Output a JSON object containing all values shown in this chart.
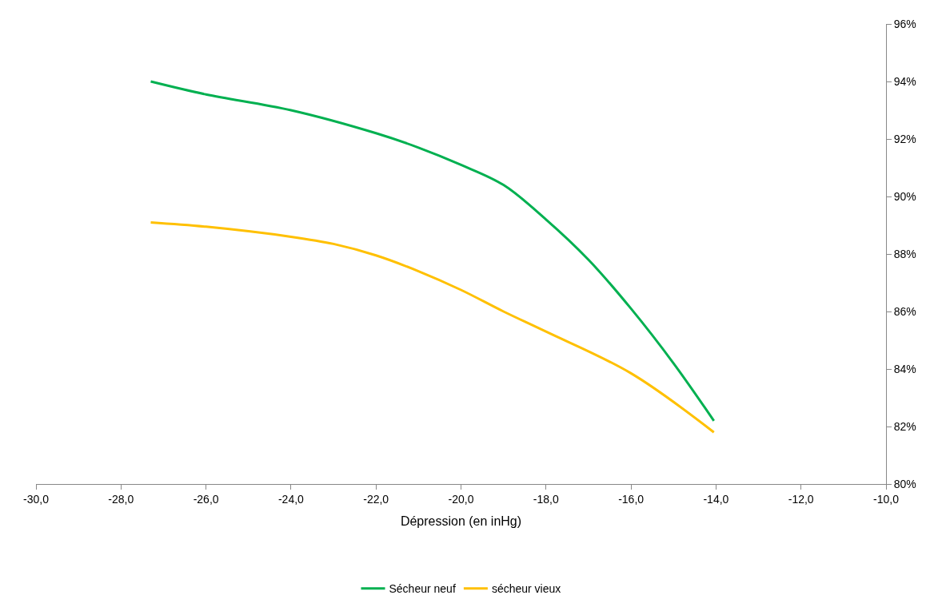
{
  "chart_data": {
    "type": "line",
    "xlabel": "Dépression (en inHg)",
    "xlim": [
      -30,
      -10
    ],
    "xticks": [
      {
        "value": -30,
        "label": "-30,0"
      },
      {
        "value": -28,
        "label": "-28,0"
      },
      {
        "value": -26,
        "label": "-26,0"
      },
      {
        "value": -24,
        "label": "-24,0"
      },
      {
        "value": -22,
        "label": "-22,0"
      },
      {
        "value": -20,
        "label": "-20,0"
      },
      {
        "value": -18,
        "label": "-18,0"
      },
      {
        "value": -16,
        "label": "-16,0"
      },
      {
        "value": -14,
        "label": "-14,0"
      },
      {
        "value": -12,
        "label": "-12,0"
      },
      {
        "value": -10,
        "label": "-10,0"
      }
    ],
    "ylim": [
      80,
      96
    ],
    "yticks": [
      {
        "value": 80,
        "label": "80%"
      },
      {
        "value": 82,
        "label": "82%"
      },
      {
        "value": 84,
        "label": "84%"
      },
      {
        "value": 86,
        "label": "86%"
      },
      {
        "value": 88,
        "label": "88%"
      },
      {
        "value": 90,
        "label": "90%"
      },
      {
        "value": 92,
        "label": "92%"
      },
      {
        "value": 94,
        "label": "94%"
      },
      {
        "value": 96,
        "label": "96%"
      }
    ],
    "legend": "bottom",
    "marker": "none",
    "line_style": "solid",
    "series": [
      {
        "name": "Sécheur neuf",
        "color": "#00b050",
        "x": [
          -27.3,
          -26,
          -24,
          -22,
          -21,
          -20,
          -19,
          -18,
          -17,
          -16,
          -15,
          -14.05
        ],
        "values": [
          94.0,
          93.55,
          93.0,
          92.2,
          91.7,
          91.1,
          90.4,
          89.2,
          87.8,
          86.1,
          84.2,
          82.2
        ]
      },
      {
        "name": "sécheur vieux",
        "color": "#ffc000",
        "x": [
          -27.3,
          -26,
          -24,
          -23,
          -22,
          -21,
          -20,
          -19,
          -18,
          -16,
          -14.05
        ],
        "values": [
          89.1,
          88.95,
          88.6,
          88.35,
          87.95,
          87.4,
          86.75,
          86.0,
          85.3,
          83.85,
          81.8
        ]
      }
    ]
  }
}
